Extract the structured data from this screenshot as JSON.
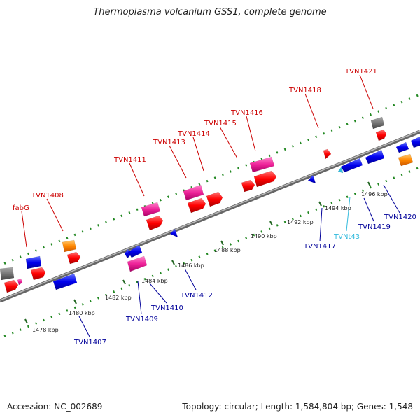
{
  "title": "Thermoplasma volcanium GSS1, complete genome",
  "footer": {
    "accession": "Accession: NC_002689",
    "summary": "Topology: circular; Length: 1,584,804 bp; Genes: 1,548"
  },
  "colors": {
    "forward_label": "#cc0000",
    "reverse_label": "#000099",
    "trna_label": "#33bbdd",
    "cds_forward": "#ff0000",
    "cds_reverse": "#0000ee",
    "rna_magenta": "#ee2299",
    "orange": "#ff8800",
    "gray": "#777777",
    "tick": "#228822",
    "backbone": "#888888"
  },
  "scale_labels": [
    "1478 kbp",
    "1480 kbp",
    "1482 kbp",
    "1484 kbp",
    "1486 kbp",
    "1488 kbp",
    "1490 kbp",
    "1492 kbp",
    "1494 kbp",
    "1496 kbp"
  ],
  "forward_genes": [
    "fabG",
    "TVN1408",
    "TVN1411",
    "TVN1413",
    "TVN1414",
    "TVN1415",
    "TVN1416",
    "TVN1418",
    "TVN1421"
  ],
  "reverse_genes": [
    "TVN1407",
    "TVN1409",
    "TVN1410",
    "TVN1412",
    "TVN1417",
    "TVNt43",
    "TVN1419",
    "TVN1420"
  ]
}
